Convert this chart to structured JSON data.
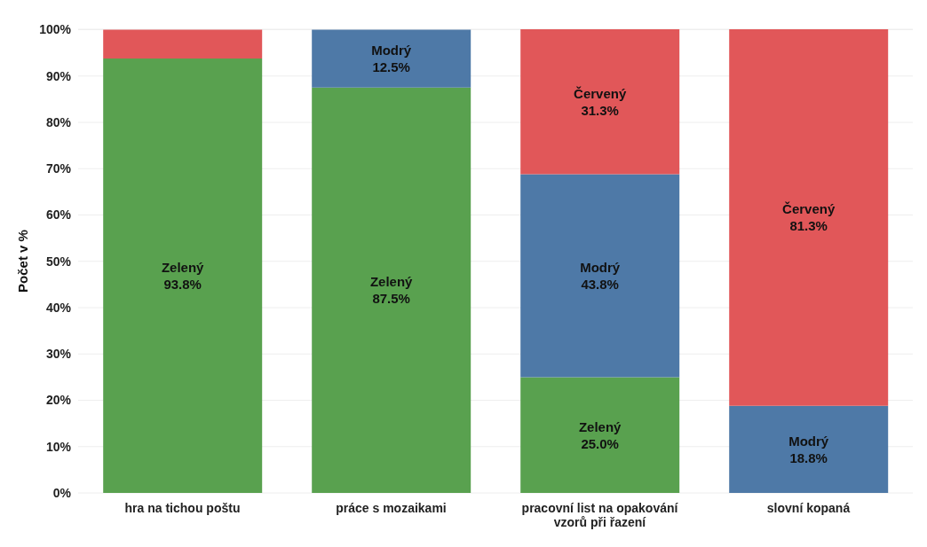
{
  "chart_data": {
    "type": "bar",
    "stacked": true,
    "ylabel": "Počet v %",
    "categories": [
      "hra na tichou poštu",
      "práce s mozaikami",
      "pracovní list na opakování vzorů při řazení",
      "slovní kopaná"
    ],
    "series": [
      {
        "name": "Zelený",
        "color": "#59a14f",
        "values": [
          93.8,
          87.5,
          25.0,
          0
        ],
        "value_labels": [
          "93.8%",
          "87.5%",
          "25.0%",
          null
        ]
      },
      {
        "name": "Modrý",
        "color": "#4e79a7",
        "values": [
          0,
          12.5,
          43.8,
          18.8
        ],
        "value_labels": [
          null,
          "12.5%",
          "43.8%",
          "18.8%"
        ]
      },
      {
        "name": "Červený",
        "color": "#e15759",
        "values": [
          6.2,
          0,
          31.3,
          81.3
        ],
        "value_labels": [
          null,
          null,
          "31.3%",
          "81.3%"
        ]
      }
    ],
    "ylim": [
      0,
      100.1
    ],
    "yticks": [
      {
        "value": 0,
        "label": "0%"
      },
      {
        "value": 10,
        "label": "10%"
      },
      {
        "value": 20,
        "label": "20%"
      },
      {
        "value": 30,
        "label": "30%"
      },
      {
        "value": 40,
        "label": "40%"
      },
      {
        "value": 50,
        "label": "50%"
      },
      {
        "value": 60,
        "label": "60%"
      },
      {
        "value": 70,
        "label": "70%"
      },
      {
        "value": 80,
        "label": "80%"
      },
      {
        "value": 90,
        "label": "90%"
      },
      {
        "value": 100,
        "label": "100%"
      }
    ],
    "grid": "y",
    "legend": false
  }
}
